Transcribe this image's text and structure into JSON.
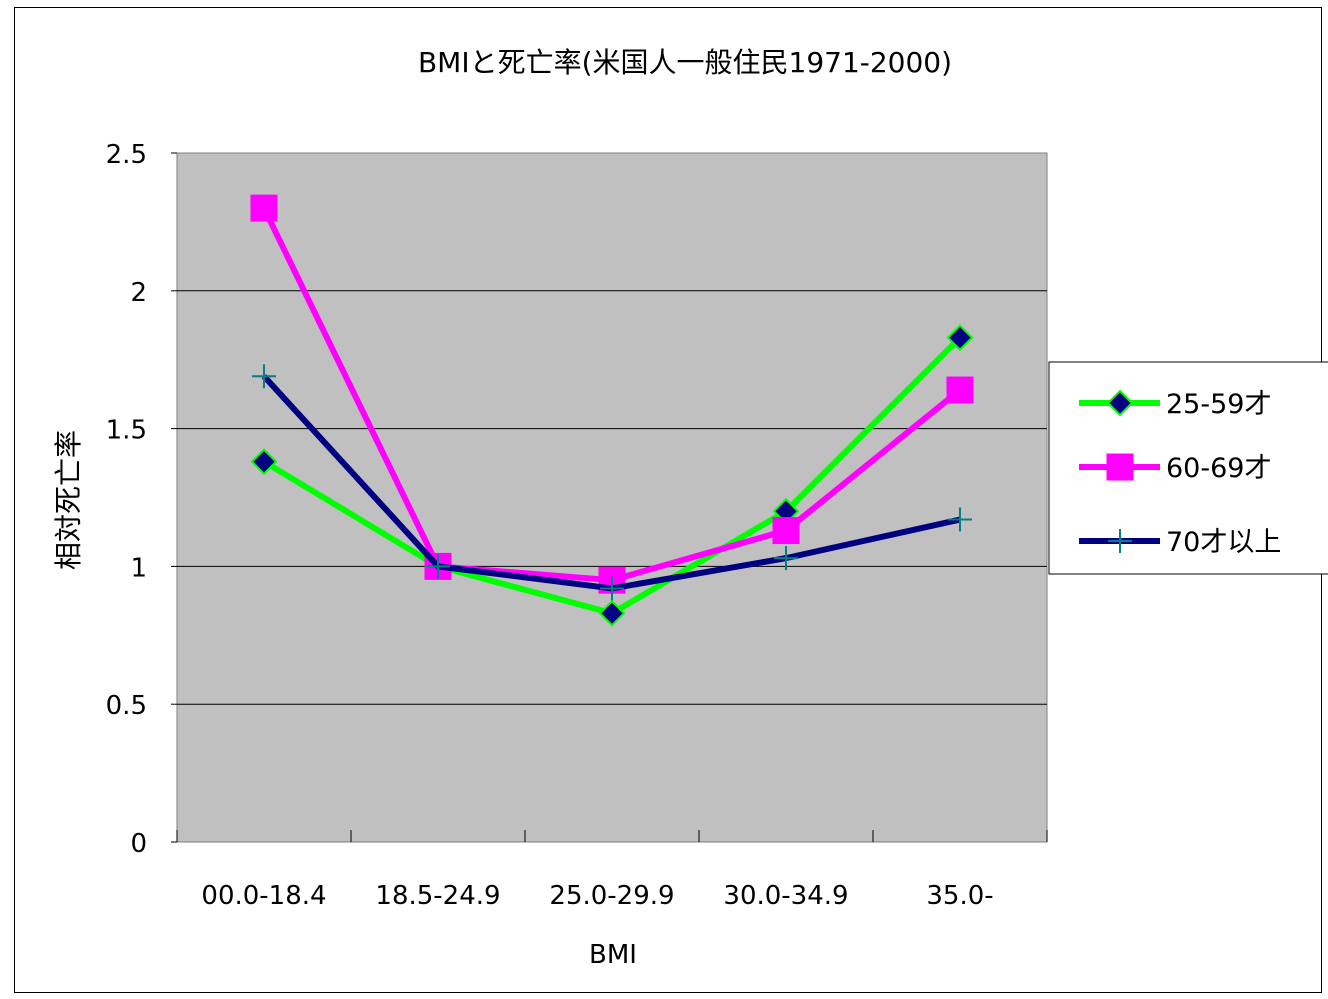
{
  "chart_data": {
    "type": "line",
    "title": "BMIと死亡率(米国人一般住民1971-2000)",
    "xlabel": "BMI",
    "ylabel": "相対死亡率",
    "categories": [
      "00.0-18.4",
      "18.5-24.9",
      "25.0-29.9",
      "30.0-34.9",
      "35.0-"
    ],
    "ylim": [
      0,
      2.5
    ],
    "yticks": [
      "0",
      "0.5",
      "1",
      "1.5",
      "2",
      "2.5"
    ],
    "grid": true,
    "legend": "right",
    "series": [
      {
        "name": "25-59才",
        "values": [
          1.38,
          1.0,
          0.83,
          1.2,
          1.83
        ],
        "color": "#00ff00",
        "marker": "diamond",
        "marker_color": "#000080"
      },
      {
        "name": "60-69才",
        "values": [
          2.3,
          1.0,
          0.95,
          1.13,
          1.64
        ],
        "color": "#ff00ff",
        "marker": "square",
        "marker_color": "#ff00ff"
      },
      {
        "name": "70才以上",
        "values": [
          1.69,
          1.0,
          0.92,
          1.03,
          1.17
        ],
        "color": "#000080",
        "marker": "plus",
        "marker_color": "#008080"
      }
    ],
    "plot_bg": "#c0c0c0"
  }
}
